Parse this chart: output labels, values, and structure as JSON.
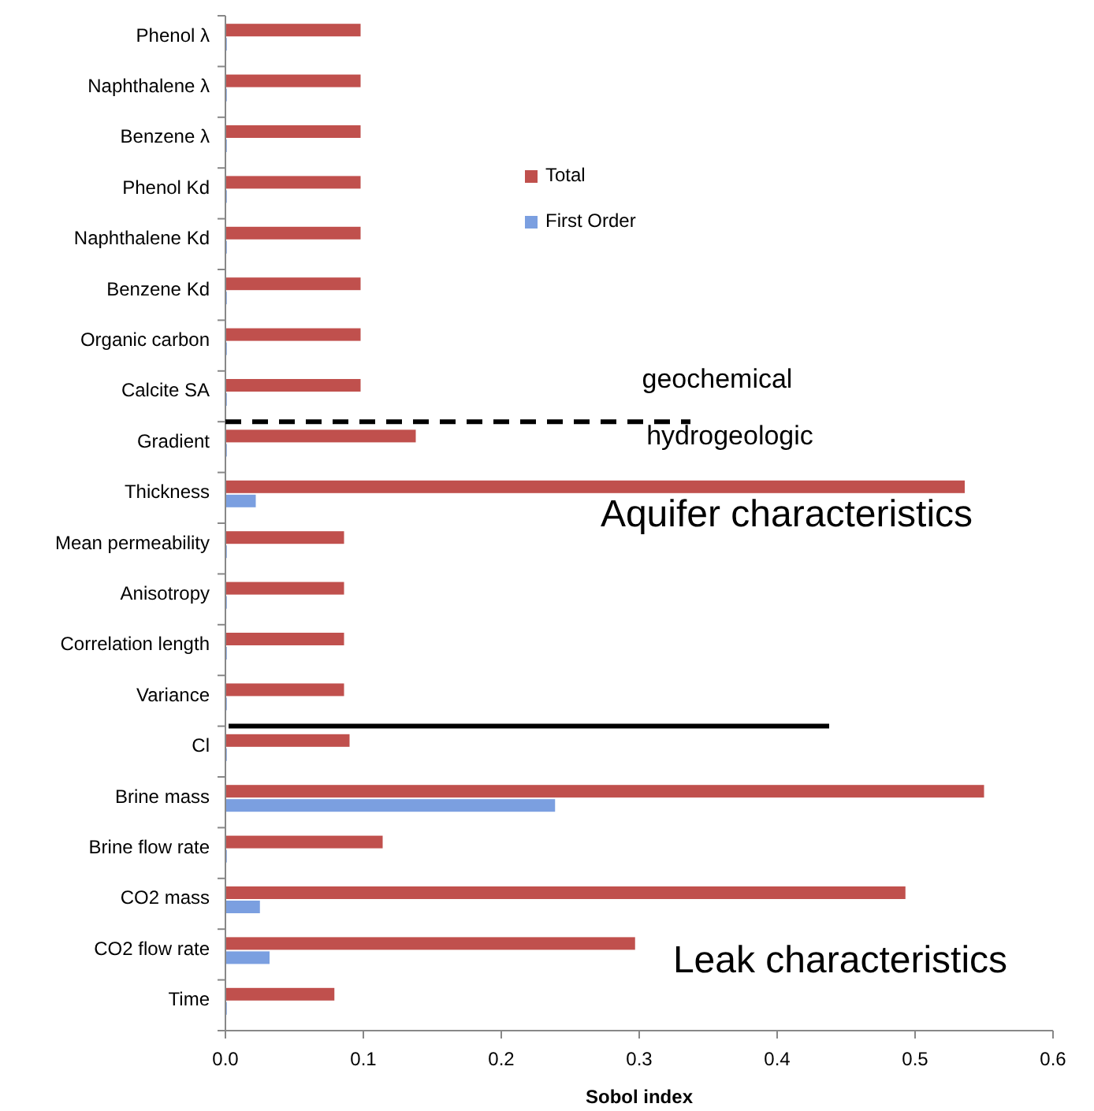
{
  "chart_data": {
    "type": "bar",
    "orientation": "horizontal",
    "xlabel": "Sobol index",
    "categories": [
      "Phenol λ",
      "Naphthalene  λ",
      "Benzene λ",
      "Phenol Kd",
      "Naphthalene Kd",
      "Benzene Kd",
      "Organic carbon",
      "Calcite SA",
      "Gradient",
      "Thickness",
      "Mean permeability",
      "Anisotropy",
      "Correlation length",
      "Variance",
      "Cl",
      "Brine mass",
      "Brine flow rate",
      "CO2 mass",
      "CO2 flow rate",
      "Time"
    ],
    "series": [
      {
        "name": "Total",
        "color": "#c0504d",
        "values": [
          0.098,
          0.098,
          0.098,
          0.098,
          0.098,
          0.098,
          0.098,
          0.098,
          0.138,
          0.536,
          0.086,
          0.086,
          0.086,
          0.086,
          0.09,
          0.55,
          0.114,
          0.493,
          0.297,
          0.079
        ]
      },
      {
        "name": "First Order",
        "color": "#7b9fe0",
        "values": [
          0.001,
          0.001,
          0.001,
          0.001,
          0.001,
          0.001,
          0.001,
          0.001,
          0.001,
          0.022,
          0.001,
          0.001,
          0.001,
          0.001,
          0.001,
          0.239,
          0.001,
          0.025,
          0.032,
          0.001
        ]
      }
    ],
    "xlim": [
      0,
      0.6
    ],
    "xticks": [
      {
        "value": 0,
        "label": "0.0"
      },
      0.1,
      0.2,
      0.3,
      0.4,
      0.5,
      0.6
    ],
    "grid": false,
    "legend": "top",
    "annotations": [
      "geochemical",
      "hydrogeologic",
      "Aquifer characteristics",
      "Leak characteristics"
    ]
  }
}
